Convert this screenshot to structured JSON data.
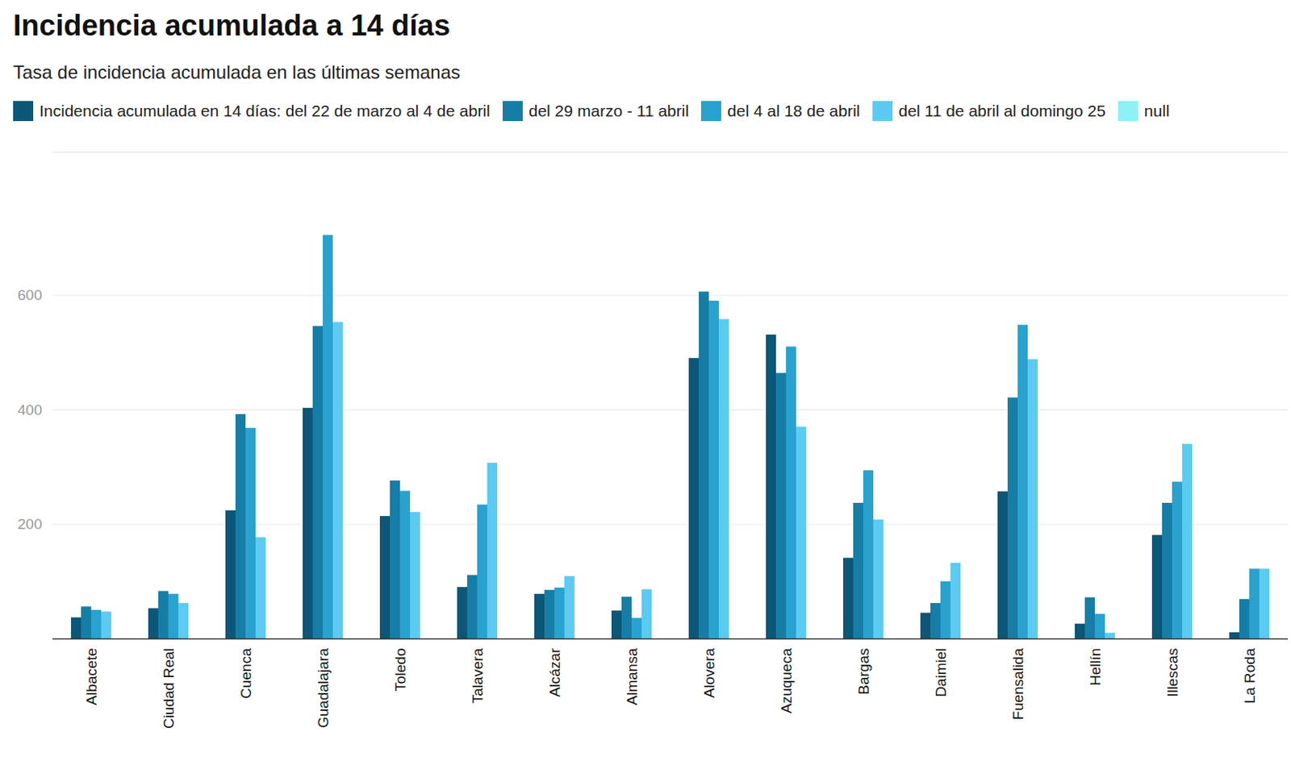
{
  "chart_data": {
    "type": "bar",
    "title": "Incidencia acumulada a 14 días",
    "subtitle": "Tasa de incidencia acumulada en las últimas semanas",
    "categories": [
      "Albacete",
      "Ciudad Real",
      "Cuenca",
      "Guadalajara",
      "Toledo",
      "Talavera",
      "Alcázar",
      "Almansa",
      "Alovera",
      "Azuqueca",
      "Bargas",
      "Daimiel",
      "Fuensalida",
      "Hellín",
      "Illescas",
      "La Roda"
    ],
    "series": [
      {
        "name": "Incidencia acumulada en 14 días: del 22 de marzo al 4 de abril",
        "color": "#0c5677",
        "values": [
          37,
          53,
          224,
          403,
          214,
          90,
          78,
          49,
          490,
          531,
          141,
          45,
          257,
          26,
          181,
          11
        ]
      },
      {
        "name": "del 29 marzo - 11 abril",
        "color": "#167ea6",
        "values": [
          56,
          83,
          392,
          546,
          276,
          111,
          85,
          73,
          606,
          464,
          237,
          62,
          421,
          72,
          237,
          69
        ]
      },
      {
        "name": "del 4 al 18 de abril",
        "color": "#29a2cf",
        "values": [
          50,
          78,
          368,
          705,
          258,
          234,
          89,
          36,
          590,
          510,
          294,
          100,
          548,
          43,
          274,
          122
        ]
      },
      {
        "name": "del 11 de abril al domingo 25",
        "color": "#5ccbf1",
        "values": [
          47,
          62,
          177,
          553,
          221,
          307,
          109,
          86,
          558,
          370,
          208,
          132,
          488,
          10,
          340,
          122
        ]
      },
      {
        "name": "null",
        "color": "#8ef1f8",
        "values": [
          null,
          null,
          null,
          null,
          null,
          null,
          null,
          null,
          null,
          null,
          null,
          null,
          null,
          null,
          null,
          null
        ]
      }
    ],
    "ylim": [
      0,
      850
    ],
    "yticks": [
      200,
      400,
      600
    ],
    "grid": true,
    "legend": "top-left"
  }
}
